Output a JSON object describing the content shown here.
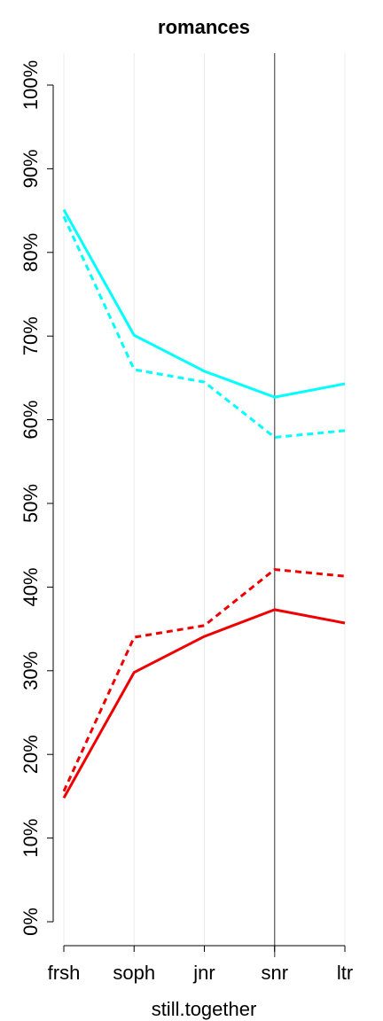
{
  "chart_data": {
    "type": "line",
    "title": "romances",
    "xlabel": "still.together",
    "ylabel": "",
    "categories": [
      "frsh",
      "soph",
      "jnr",
      "snr",
      "ltr"
    ],
    "ylim": [
      0,
      1
    ],
    "yticks": [
      0,
      0.1,
      0.2,
      0.3,
      0.4,
      0.5,
      0.6,
      0.7,
      0.8,
      0.9,
      1.0
    ],
    "ytick_labels": [
      "0%",
      "10%",
      "20%",
      "30%",
      "40%",
      "50%",
      "60%",
      "70%",
      "80%",
      "90%",
      "100%"
    ],
    "reference_line_category": "snr",
    "grid": "vertical",
    "series": [
      {
        "color": "#00ffff",
        "style": "solid",
        "values": [
          0.851,
          0.701,
          0.658,
          0.627,
          0.643
        ]
      },
      {
        "color": "#00ffff",
        "style": "dashed",
        "values": [
          0.843,
          0.66,
          0.645,
          0.579,
          0.587
        ]
      },
      {
        "color": "#ee0000",
        "style": "solid",
        "values": [
          0.148,
          0.298,
          0.341,
          0.373,
          0.357
        ]
      },
      {
        "color": "#ee0000",
        "style": "dashed",
        "values": [
          0.156,
          0.34,
          0.354,
          0.421,
          0.413
        ]
      }
    ]
  }
}
